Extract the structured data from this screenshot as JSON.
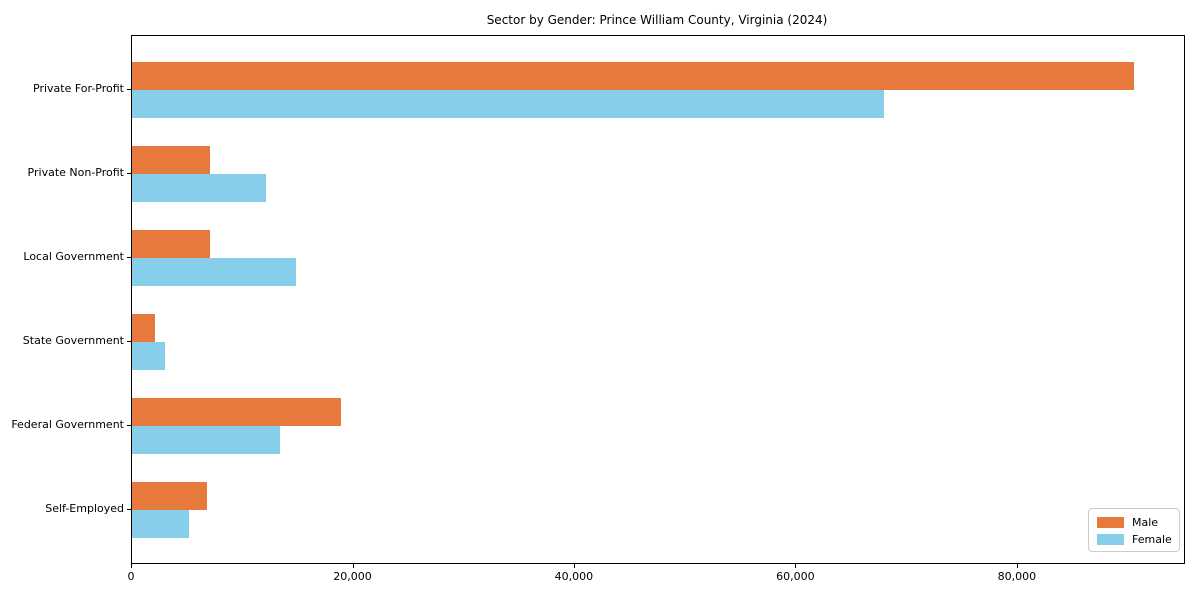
{
  "chart_data": {
    "type": "bar",
    "orientation": "horizontal",
    "title": "Sector by Gender: Prince William County, Virginia (2024)",
    "categories": [
      "Private For-Profit",
      "Private Non-Profit",
      "Local Government",
      "State Government",
      "Federal Government",
      "Self-Employed"
    ],
    "series": [
      {
        "name": "Male",
        "color": "#e8793c",
        "values": [
          90500,
          7000,
          7000,
          2100,
          18900,
          6800
        ]
      },
      {
        "name": "Female",
        "color": "#87ceeb",
        "values": [
          67900,
          12100,
          14800,
          3000,
          13400,
          5100
        ]
      }
    ],
    "xlabel": "",
    "ylabel": "",
    "xlim": [
      0,
      95000
    ],
    "xticks": [
      0,
      20000,
      40000,
      60000,
      80000
    ],
    "xticklabels": [
      "0",
      "20,000",
      "40,000",
      "60,000",
      "80,000"
    ],
    "grid": false,
    "legend": {
      "position": "lower right"
    }
  }
}
